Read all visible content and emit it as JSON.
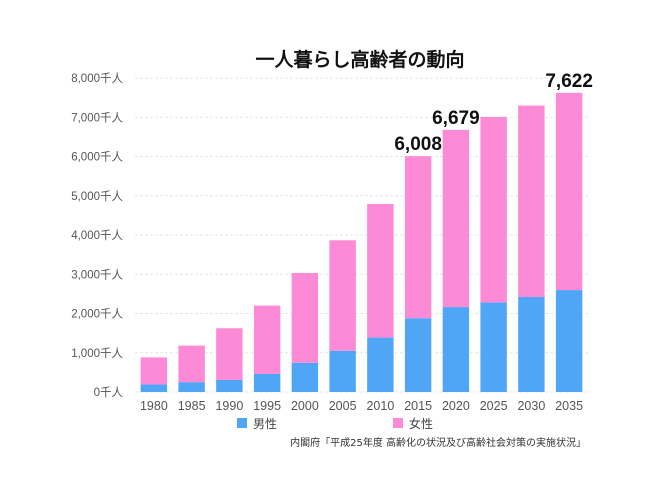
{
  "chart_data": {
    "type": "bar",
    "stacked": true,
    "title": "一人暮らし高齢者の動向",
    "xlabel": "",
    "ylabel": "",
    "ylim": [
      0,
      8000
    ],
    "yticks": [
      0,
      1000,
      2000,
      3000,
      4000,
      5000,
      6000,
      7000,
      8000
    ],
    "ytick_labels": [
      "0千人",
      "1,000千人",
      "2,000千人",
      "3,000千人",
      "4,000千人",
      "5,000千人",
      "6,000千人",
      "7,000千人",
      "8,000千人"
    ],
    "grid": true,
    "categories": [
      "1980",
      "1985",
      "1990",
      "1995",
      "2000",
      "2005",
      "2010",
      "2015",
      "2020",
      "2025",
      "2030",
      "2035"
    ],
    "series": [
      {
        "name": "男性",
        "color": "#4fa6f7",
        "values": [
          193,
          250,
          308,
          460,
          742,
          1051,
          1386,
          1880,
          2164,
          2283,
          2421,
          2597
        ]
      },
      {
        "name": "女性",
        "color": "#fc8ad6",
        "values": [
          688,
          931,
          1315,
          1742,
          2290,
          2814,
          3405,
          4128,
          4515,
          4724,
          4877,
          5025
        ]
      }
    ],
    "totals": [
      881,
      1181,
      1623,
      2202,
      3032,
      3865,
      4791,
      6008,
      6679,
      7007,
      7298,
      7622
    ],
    "annotations": [
      {
        "category": "2015",
        "text": "6,008"
      },
      {
        "category": "2020",
        "text": "6,679"
      },
      {
        "category": "2035",
        "text": "7,622"
      }
    ],
    "legend": {
      "position": "bottom",
      "entries": [
        "男性",
        "女性"
      ]
    },
    "source": "内閣府「平成25年度 高齢化の状況及び高齢社会対策の実施状況」"
  }
}
